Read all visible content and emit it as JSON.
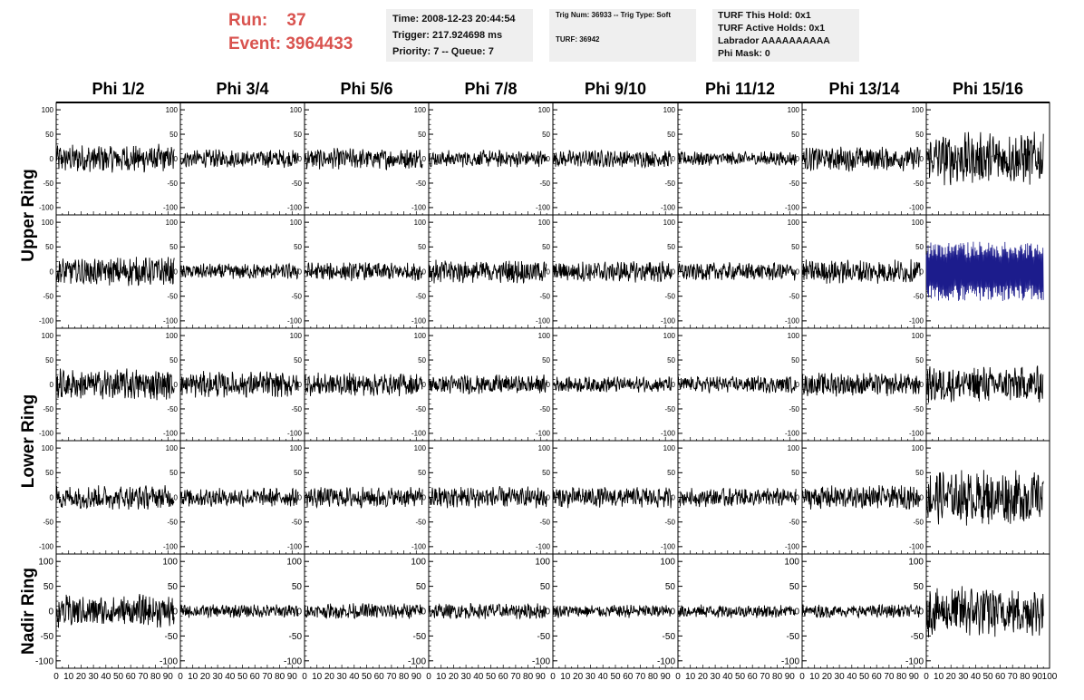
{
  "header": {
    "run_label": "Run:",
    "run_value": "37",
    "event_label": "Event:",
    "event_value": "3964433"
  },
  "info_time": {
    "time": "Time: 2008-12-23 20:44:54",
    "trigger": "Trigger: 217.924698 ms",
    "priority": "Priority: 7 -- Queue: 7"
  },
  "info_trig": {
    "trig": "Trig Num: 36933 -- Trig Type: Soft",
    "turf": "TURF: 36942"
  },
  "info_turf": {
    "hold": "TURF This Hold: 0x1",
    "active": "TURF Active Holds: 0x1",
    "labrador": "Labrador AAAAAAAAAA",
    "phimask": "Phi Mask: 0"
  },
  "colors": {
    "header_text": "#d9534f",
    "info_bg": "#efefef",
    "trace": "#000000",
    "highlight_trace": "#1c1c8c"
  },
  "chart_data": {
    "type": "line",
    "columns": [
      "Phi 1/2",
      "Phi 3/4",
      "Phi 5/6",
      "Phi 7/8",
      "Phi 9/10",
      "Phi 11/12",
      "Phi 13/14",
      "Phi 15/16"
    ],
    "ring_labels": [
      "Upper Ring",
      "Lower Ring",
      "Nadir Ring"
    ],
    "rows": 5,
    "ylim": [
      -115,
      115
    ],
    "yticks_rows_1_4": [
      100,
      50,
      0,
      -50,
      -100
    ],
    "ytick_labels_rows_1_4": [
      "100",
      "50",
      "0",
      "-50",
      "-100"
    ],
    "yticks_row_5": [
      100,
      50,
      0,
      -50,
      -100
    ],
    "ytick_labels_row_5": [
      "100",
      "50",
      "0",
      "-50",
      "-100"
    ],
    "xlim": [
      0,
      100
    ],
    "xticks": [
      0,
      10,
      20,
      30,
      40,
      50,
      60,
      70,
      80,
      90,
      100
    ],
    "xtick_labels": [
      "0",
      "10",
      "20",
      "30",
      "40",
      "50",
      "60",
      "70",
      "80",
      "90",
      "100"
    ],
    "highlighted_panel": {
      "row": 2,
      "col": 8
    },
    "amplitude_by_row_col": [
      [
        22,
        14,
        16,
        13,
        13,
        11,
        19,
        40
      ],
      [
        22,
        12,
        14,
        18,
        16,
        14,
        18,
        55
      ],
      [
        24,
        20,
        18,
        15,
        12,
        13,
        18,
        28
      ],
      [
        18,
        14,
        16,
        17,
        16,
        14,
        18,
        42
      ],
      [
        25,
        10,
        12,
        12,
        10,
        10,
        10,
        38
      ]
    ]
  }
}
